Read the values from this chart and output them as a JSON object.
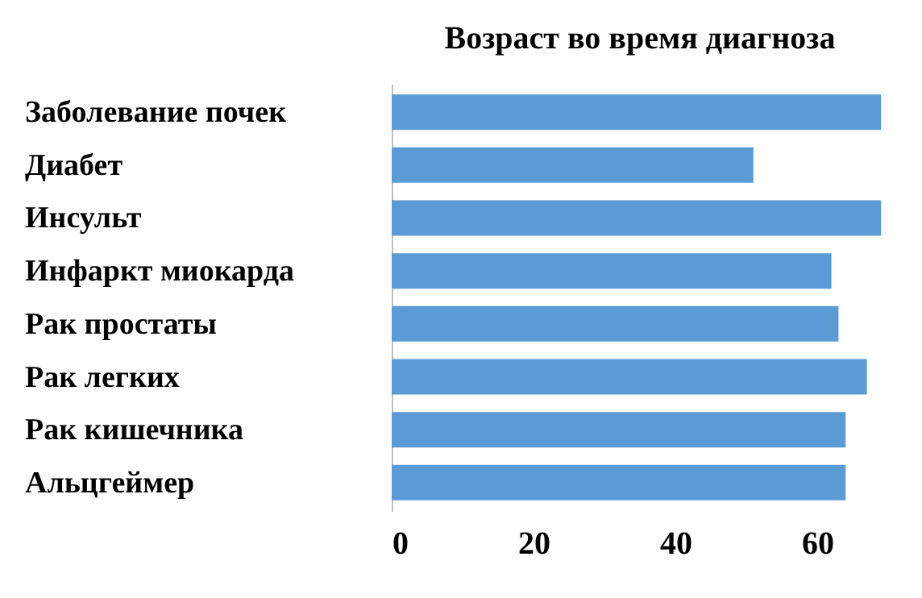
{
  "chart_data": {
    "type": "bar",
    "orientation": "horizontal",
    "title": "Возраст во время диагноза",
    "categories": [
      "Заболевание почек",
      "Диабет",
      "Инсульт",
      "Инфаркт миокарда",
      "Рак простаты",
      "Рак легких",
      "Рак кишечника",
      "Альцгеймер"
    ],
    "values": [
      69,
      51,
      69,
      62,
      63,
      67,
      64,
      64
    ],
    "color": "#5b9bd5",
    "xlim": [
      0,
      70
    ],
    "xticks": [
      0,
      20,
      40,
      60
    ]
  }
}
